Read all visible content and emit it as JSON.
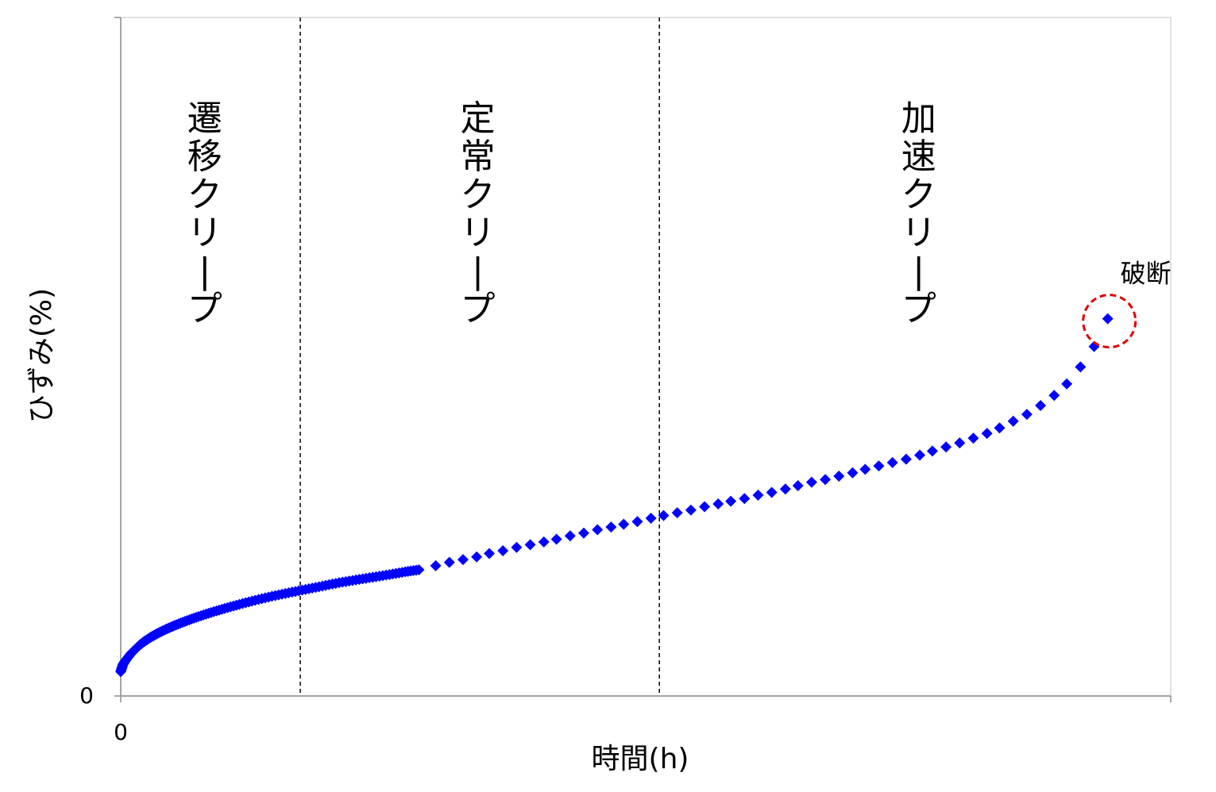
{
  "chart_data": {
    "type": "scatter",
    "xlabel": "時間(h)",
    "ylabel": "ひずみ(%)",
    "x_tick_labels": [
      "0"
    ],
    "y_tick_labels": [
      "0"
    ],
    "xlim": [
      0,
      1.0
    ],
    "ylim": [
      0,
      1.0
    ],
    "grid": false,
    "marker_color": "#0000ff",
    "phase_boundaries": [
      0.171,
      0.513
    ],
    "phases": [
      {
        "label": "遷移クリープ",
        "x": 0.08
      },
      {
        "label": "定常クリープ",
        "x": 0.34
      },
      {
        "label": "加速クリープ",
        "x": 0.76
      }
    ],
    "annotation": {
      "text": "破断",
      "color": "#e00000"
    },
    "series": [
      {
        "points": [
          [
            0.0,
            0.036
          ],
          [
            0.002,
            0.046
          ],
          [
            0.004,
            0.051
          ],
          [
            0.007,
            0.057
          ],
          [
            0.01,
            0.063
          ],
          [
            0.014,
            0.069
          ],
          [
            0.018,
            0.075
          ],
          [
            0.023,
            0.081
          ],
          [
            0.029,
            0.087
          ],
          [
            0.036,
            0.093
          ],
          [
            0.044,
            0.099
          ],
          [
            0.053,
            0.105
          ],
          [
            0.063,
            0.111
          ],
          [
            0.074,
            0.117
          ],
          [
            0.086,
            0.123
          ],
          [
            0.099,
            0.129
          ],
          [
            0.113,
            0.135
          ],
          [
            0.128,
            0.141
          ],
          [
            0.144,
            0.147
          ],
          [
            0.16,
            0.152
          ],
          [
            0.176,
            0.157
          ],
          [
            0.192,
            0.162
          ],
          [
            0.208,
            0.167
          ],
          [
            0.224,
            0.171
          ],
          [
            0.24,
            0.175
          ],
          [
            0.256,
            0.179
          ],
          [
            0.271,
            0.183
          ],
          [
            0.284,
            0.186
          ],
          [
            0.3,
            0.192
          ],
          [
            0.313,
            0.197
          ],
          [
            0.326,
            0.201
          ],
          [
            0.339,
            0.205
          ],
          [
            0.351,
            0.21
          ],
          [
            0.364,
            0.214
          ],
          [
            0.377,
            0.219
          ],
          [
            0.39,
            0.223
          ],
          [
            0.403,
            0.227
          ],
          [
            0.415,
            0.231
          ],
          [
            0.428,
            0.236
          ],
          [
            0.441,
            0.24
          ],
          [
            0.454,
            0.245
          ],
          [
            0.467,
            0.249
          ],
          [
            0.479,
            0.253
          ],
          [
            0.492,
            0.257
          ],
          [
            0.505,
            0.262
          ],
          [
            0.517,
            0.266
          ],
          [
            0.53,
            0.27
          ],
          [
            0.543,
            0.274
          ],
          [
            0.556,
            0.279
          ],
          [
            0.569,
            0.283
          ],
          [
            0.581,
            0.287
          ],
          [
            0.594,
            0.291
          ],
          [
            0.607,
            0.296
          ],
          [
            0.62,
            0.3
          ],
          [
            0.633,
            0.305
          ],
          [
            0.645,
            0.31
          ],
          [
            0.658,
            0.315
          ],
          [
            0.671,
            0.319
          ],
          [
            0.684,
            0.324
          ],
          [
            0.697,
            0.329
          ],
          [
            0.709,
            0.334
          ],
          [
            0.722,
            0.339
          ],
          [
            0.735,
            0.344
          ],
          [
            0.748,
            0.349
          ],
          [
            0.761,
            0.355
          ],
          [
            0.773,
            0.361
          ],
          [
            0.786,
            0.367
          ],
          [
            0.799,
            0.373
          ],
          [
            0.812,
            0.38
          ],
          [
            0.825,
            0.387
          ],
          [
            0.837,
            0.395
          ],
          [
            0.85,
            0.405
          ],
          [
            0.863,
            0.415
          ],
          [
            0.876,
            0.428
          ],
          [
            0.889,
            0.443
          ],
          [
            0.901,
            0.46
          ],
          [
            0.914,
            0.485
          ],
          [
            0.927,
            0.515
          ],
          [
            0.94,
            0.556
          ]
        ]
      }
    ]
  }
}
